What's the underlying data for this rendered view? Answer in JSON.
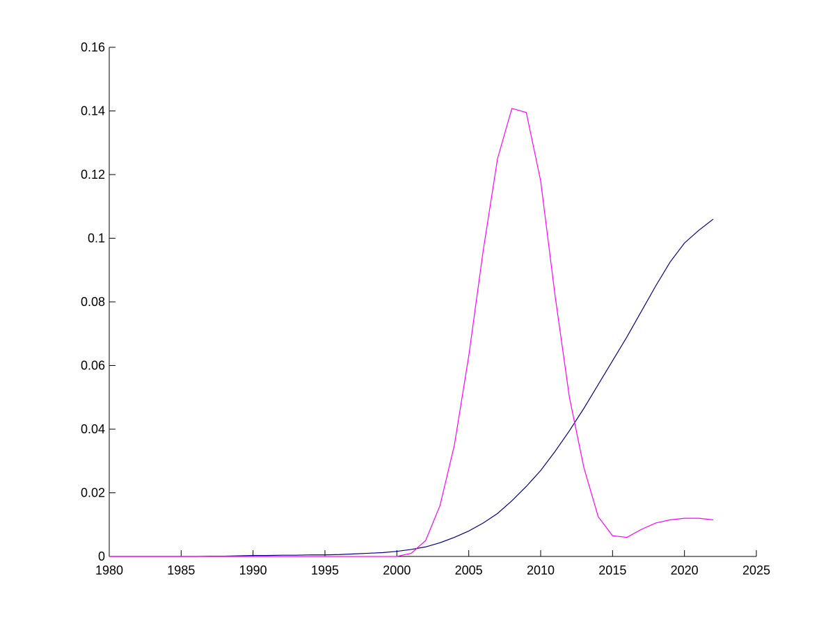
{
  "chart_data": {
    "type": "line",
    "x": [
      1980,
      1981,
      1982,
      1983,
      1984,
      1985,
      1986,
      1987,
      1988,
      1989,
      1990,
      1991,
      1992,
      1993,
      1994,
      1995,
      1996,
      1997,
      1998,
      1999,
      2000,
      2001,
      2002,
      2003,
      2004,
      2005,
      2006,
      2007,
      2008,
      2009,
      2010,
      2011,
      2012,
      2013,
      2014,
      2015,
      2016,
      2017,
      2018,
      2019,
      2020,
      2021,
      2022
    ],
    "series": [
      {
        "color": "#00008b",
        "values": [
          0,
          0,
          0,
          0,
          0,
          0,
          0,
          0.0001,
          0.0001,
          0.0002,
          0.0003,
          0.0003,
          0.0004,
          0.0004,
          0.0005,
          0.0005,
          0.0006,
          0.0008,
          0.001,
          0.0012,
          0.0016,
          0.0022,
          0.003,
          0.0043,
          0.006,
          0.008,
          0.0105,
          0.0135,
          0.0175,
          0.022,
          0.027,
          0.033,
          0.0395,
          0.0465,
          0.054,
          0.0615,
          0.069,
          0.077,
          0.085,
          0.0925,
          0.0985,
          0.1025,
          0.106
        ]
      },
      {
        "color": "#ff00ff",
        "values": [
          0,
          0,
          0,
          0,
          0,
          0,
          0,
          0,
          0,
          0,
          0,
          0,
          0,
          0,
          0,
          0,
          0,
          0,
          0,
          0,
          0,
          0.001,
          0.005,
          0.016,
          0.035,
          0.063,
          0.096,
          0.125,
          0.1408,
          0.1395,
          0.118,
          0.082,
          0.05,
          0.028,
          0.0125,
          0.0065,
          0.006,
          0.0085,
          0.0105,
          0.0115,
          0.012,
          0.012,
          0.0115
        ]
      }
    ],
    "xlim": [
      1980,
      2025
    ],
    "xticks": [
      1980,
      1985,
      1990,
      1995,
      2000,
      2005,
      2010,
      2015,
      2020,
      2025
    ],
    "ylim": [
      0,
      0.16
    ],
    "yticks": [
      0,
      0.02,
      0.04,
      0.06,
      0.08,
      0.1,
      0.12,
      0.14,
      0.16
    ]
  }
}
